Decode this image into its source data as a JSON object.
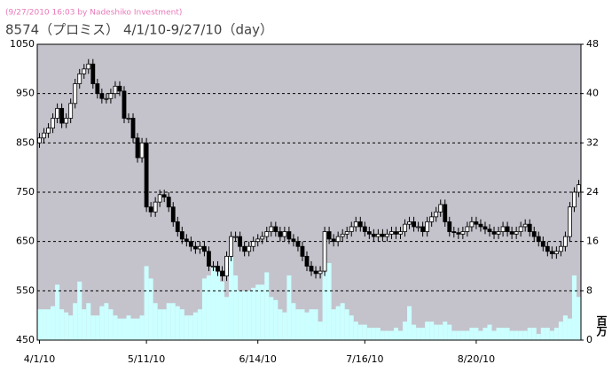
{
  "chart_data": {
    "type": "candlestick",
    "subtitle": "(9/27/2010 16:03 by Nadeshiko Investment)",
    "title": "8574（プロミス） 4/1/10-9/27/10（day）",
    "categories": [
      "4/1/10",
      null,
      null,
      null,
      null,
      null,
      null,
      null,
      null,
      null,
      null,
      null,
      null,
      null,
      null,
      null,
      null,
      null,
      null,
      null,
      null,
      null,
      null,
      null,
      "5/11/10",
      null,
      null,
      null,
      null,
      null,
      null,
      null,
      null,
      null,
      null,
      null,
      null,
      null,
      null,
      null,
      null,
      null,
      null,
      null,
      null,
      null,
      null,
      null,
      null,
      "6/14/10",
      null,
      null,
      null,
      null,
      null,
      null,
      null,
      null,
      null,
      null,
      null,
      null,
      null,
      null,
      null,
      null,
      null,
      null,
      null,
      null,
      null,
      null,
      null,
      "7/16/10",
      null,
      null,
      null,
      null,
      null,
      null,
      null,
      null,
      null,
      null,
      null,
      null,
      null,
      null,
      null,
      null,
      null,
      null,
      null,
      null,
      null,
      null,
      null,
      null,
      "8/20/10",
      null,
      null,
      null,
      null,
      null,
      null,
      null,
      null,
      null,
      null,
      null,
      null,
      null,
      null,
      null,
      null,
      null,
      null,
      null,
      null,
      null,
      null,
      null
    ],
    "open": [
      850,
      860,
      870,
      880,
      900,
      920,
      890,
      900,
      930,
      970,
      990,
      1000,
      1010,
      970,
      950,
      940,
      940,
      950,
      965,
      955,
      900,
      900,
      860,
      820,
      850,
      720,
      710,
      730,
      745,
      740,
      720,
      690,
      670,
      655,
      650,
      640,
      635,
      640,
      630,
      600,
      600,
      590,
      580,
      620,
      660,
      660,
      640,
      630,
      640,
      650,
      655,
      660,
      670,
      680,
      670,
      660,
      670,
      655,
      650,
      640,
      620,
      600,
      590,
      585,
      590,
      670,
      655,
      650,
      660,
      665,
      670,
      680,
      690,
      680,
      670,
      665,
      660,
      665,
      660,
      665,
      670,
      665,
      670,
      685,
      690,
      680,
      680,
      670,
      690,
      700,
      710,
      725,
      690,
      670,
      668,
      665,
      670,
      680,
      690,
      685,
      680,
      675,
      670,
      665,
      670,
      680,
      670,
      665,
      670,
      680,
      685,
      670,
      660,
      650,
      640,
      630,
      625,
      630,
      640,
      660,
      720,
      750
    ],
    "high": [
      870,
      880,
      890,
      910,
      930,
      930,
      910,
      940,
      980,
      1000,
      1010,
      1020,
      1020,
      980,
      960,
      950,
      960,
      975,
      975,
      965,
      910,
      910,
      870,
      860,
      860,
      730,
      740,
      755,
      755,
      750,
      730,
      700,
      680,
      665,
      660,
      650,
      650,
      650,
      640,
      610,
      610,
      600,
      630,
      670,
      670,
      670,
      650,
      650,
      660,
      665,
      670,
      680,
      690,
      690,
      680,
      680,
      680,
      665,
      660,
      650,
      630,
      610,
      600,
      600,
      680,
      680,
      665,
      670,
      675,
      680,
      690,
      700,
      700,
      690,
      680,
      675,
      675,
      675,
      675,
      680,
      680,
      680,
      695,
      700,
      700,
      690,
      690,
      700,
      710,
      720,
      735,
      735,
      700,
      680,
      678,
      680,
      690,
      700,
      700,
      695,
      690,
      685,
      680,
      680,
      690,
      690,
      680,
      680,
      690,
      695,
      695,
      680,
      670,
      660,
      650,
      640,
      640,
      650,
      670,
      730,
      760,
      775
    ],
    "low": [
      840,
      850,
      860,
      870,
      890,
      880,
      880,
      890,
      920,
      960,
      980,
      990,
      960,
      940,
      930,
      930,
      930,
      940,
      945,
      890,
      890,
      850,
      810,
      810,
      710,
      700,
      700,
      720,
      730,
      710,
      680,
      660,
      645,
      640,
      630,
      625,
      625,
      620,
      590,
      590,
      580,
      570,
      570,
      610,
      650,
      630,
      620,
      620,
      630,
      640,
      645,
      650,
      660,
      660,
      650,
      650,
      645,
      640,
      630,
      610,
      590,
      580,
      575,
      575,
      580,
      645,
      640,
      640,
      650,
      655,
      660,
      670,
      670,
      660,
      655,
      650,
      650,
      650,
      650,
      655,
      655,
      655,
      660,
      675,
      670,
      670,
      660,
      660,
      680,
      690,
      700,
      680,
      660,
      658,
      655,
      655,
      660,
      670,
      675,
      670,
      665,
      660,
      655,
      655,
      660,
      660,
      655,
      655,
      660,
      670,
      660,
      650,
      640,
      630,
      620,
      615,
      615,
      620,
      630,
      650,
      710,
      740
    ],
    "close": [
      860,
      870,
      880,
      900,
      920,
      890,
      900,
      930,
      970,
      990,
      1000,
      1010,
      970,
      950,
      940,
      940,
      950,
      965,
      955,
      900,
      900,
      860,
      820,
      850,
      720,
      710,
      730,
      745,
      740,
      720,
      690,
      670,
      655,
      650,
      640,
      635,
      640,
      630,
      600,
      600,
      590,
      580,
      620,
      660,
      660,
      640,
      630,
      640,
      650,
      655,
      660,
      670,
      680,
      670,
      660,
      670,
      655,
      650,
      640,
      620,
      600,
      590,
      585,
      590,
      670,
      655,
      650,
      660,
      665,
      670,
      680,
      690,
      680,
      670,
      665,
      660,
      665,
      660,
      665,
      670,
      665,
      670,
      685,
      690,
      680,
      680,
      670,
      690,
      700,
      710,
      725,
      690,
      670,
      668,
      665,
      670,
      680,
      690,
      685,
      680,
      675,
      670,
      665,
      670,
      680,
      670,
      665,
      670,
      680,
      685,
      670,
      660,
      650,
      640,
      630,
      625,
      630,
      640,
      660,
      720,
      750,
      765
    ],
    "volume": [
      5,
      5,
      5,
      5.5,
      9,
      5,
      4.5,
      4,
      6,
      9.5,
      5,
      6,
      4,
      4,
      5.5,
      6,
      5,
      4,
      3.5,
      3.5,
      4,
      3.5,
      3.5,
      4,
      12,
      10,
      6,
      5,
      5,
      6,
      6,
      5.5,
      5,
      4,
      4,
      4.5,
      5,
      10,
      10.5,
      12,
      11,
      9.5,
      7,
      13.5,
      10.5,
      8,
      8,
      8,
      8.5,
      9,
      9,
      11,
      7,
      6.5,
      5,
      4.5,
      10.5,
      6,
      5,
      5,
      4.5,
      5,
      5,
      3,
      11,
      12.5,
      5,
      5.5,
      6,
      5,
      4,
      3,
      2.5,
      2.5,
      2,
      2,
      2,
      1.5,
      1.5,
      1.5,
      2,
      1.5,
      3,
      5.5,
      2.5,
      2,
      2,
      3,
      3,
      2.5,
      2.5,
      3,
      2.5,
      1.5,
      1.5,
      1.5,
      1.5,
      2,
      2,
      1.5,
      2,
      2.5,
      1.5,
      2,
      2,
      2,
      1.5,
      1.5,
      1.5,
      1.5,
      2,
      2,
      1,
      2,
      2,
      1.5,
      2,
      3,
      4,
      3.5,
      10.5,
      7
    ],
    "ylim": [
      450,
      1050
    ],
    "yticks": [
      450,
      550,
      650,
      750,
      850,
      950,
      1050
    ],
    "y2lim": [
      0,
      48
    ],
    "y2ticks": [
      0,
      8,
      16,
      24,
      32,
      40,
      48
    ],
    "y2label": "百万",
    "grid": true,
    "up_color": "#ffffff",
    "down_color": "#000000",
    "volume_color": "#ccffff",
    "background": "#c4c3cc"
  }
}
